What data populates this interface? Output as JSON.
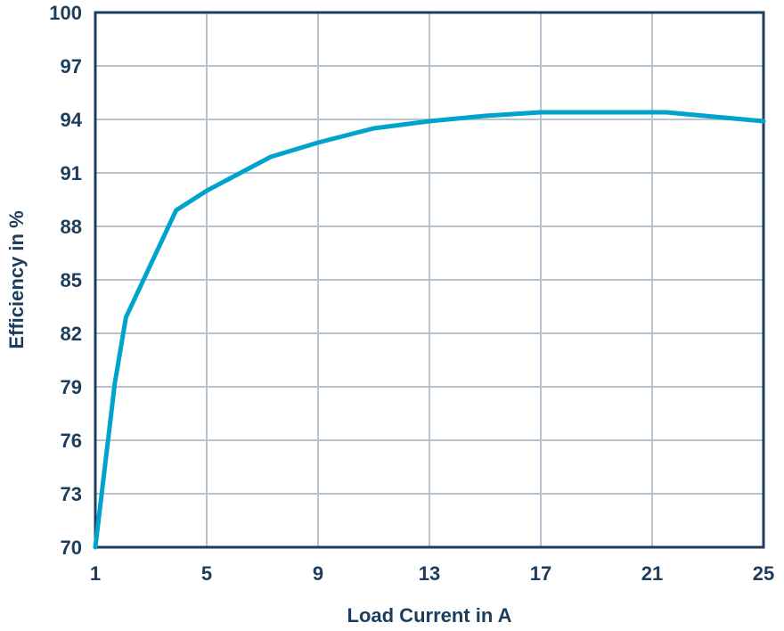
{
  "chart_data": {
    "type": "line",
    "title": "",
    "xlabel": "Load Current in A",
    "ylabel": "Efficiency in %",
    "xlim": [
      1,
      25
    ],
    "ylim": [
      70,
      100
    ],
    "x_ticks": [
      "1",
      "5",
      "9",
      "13",
      "17",
      "21",
      "25"
    ],
    "y_ticks": [
      "70",
      "73",
      "76",
      "79",
      "82",
      "85",
      "88",
      "91",
      "94",
      "97",
      "100"
    ],
    "x_tick_values": [
      1,
      5,
      9,
      13,
      17,
      21,
      25
    ],
    "y_tick_values": [
      70,
      73,
      76,
      79,
      82,
      85,
      88,
      91,
      94,
      97,
      100
    ],
    "grid": true,
    "legend": "none",
    "series": [
      {
        "x": [
          1,
          1.7,
          2.1,
          3.9,
          5.0,
          7.3,
          9.0,
          11.0,
          13.0,
          15.0,
          17.0,
          19.0,
          21.5,
          25.0
        ],
        "y": [
          70,
          79.2,
          82.9,
          88.9,
          90.0,
          91.9,
          92.7,
          93.5,
          93.9,
          94.2,
          94.4,
          94.4,
          94.4,
          93.9
        ],
        "color": "#00a3cc"
      }
    ]
  },
  "colors": {
    "axis_text": "#1d3d5c",
    "grid": "#b9c3cf",
    "series": "#00a3cc"
  }
}
